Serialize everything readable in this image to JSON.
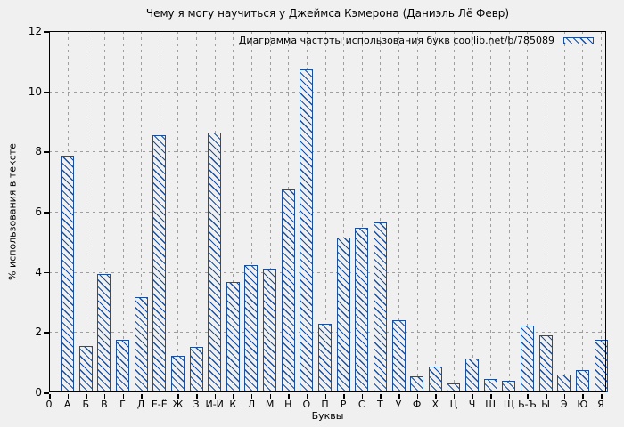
{
  "colors": {
    "bar": "#1a4f9e",
    "grid": "#9e9e9e",
    "frame": "#000000",
    "background": "#f0f0f0"
  },
  "chart_data": {
    "type": "bar",
    "title": "Чему я могу научиться у Джеймса Кэмерона (Даниэль Лё Февр)",
    "legend_label": "Диаграмма частоты использования букв coollib.net/b/785089",
    "xlabel": "Буквы",
    "ylabel": "% использования в тексте",
    "ylim": [
      0,
      12
    ],
    "yticks": [
      0,
      2,
      4,
      6,
      8,
      10,
      12
    ],
    "grid": true,
    "legend_position": "top-right-inside",
    "bar_style": "diagonal-hatch",
    "categories": [
      "0",
      "А",
      "Б",
      "В",
      "Г",
      "Д",
      "Е-Ё",
      "Ж",
      "З",
      "И-Й",
      "К",
      "Л",
      "М",
      "Н",
      "О",
      "П",
      "Р",
      "С",
      "Т",
      "У",
      "Ф",
      "Х",
      "Ц",
      "Ч",
      "Ш",
      "Щ",
      "Ь-Ъ",
      "Ы",
      "Э",
      "Ю",
      "Я"
    ],
    "values": [
      0,
      7.87,
      1.55,
      3.94,
      1.74,
      3.15,
      8.55,
      1.21,
      1.51,
      8.62,
      3.66,
      4.24,
      4.1,
      6.74,
      10.73,
      2.27,
      5.15,
      5.48,
      5.64,
      2.39,
      0.52,
      0.85,
      0.31,
      1.12,
      0.45,
      0.38,
      2.21,
      1.89,
      0.59,
      0.73,
      1.74
    ]
  }
}
